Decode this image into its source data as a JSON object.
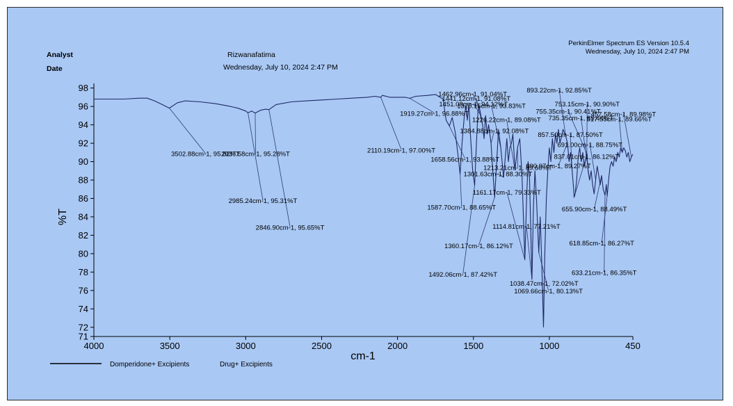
{
  "header": {
    "analyst_label": "Analyst",
    "date_label": "Date",
    "analyst_name": "Rizwanafatima",
    "analyst_date": "Wednesday, July 10, 2024 2:47 PM",
    "software": "PerkinElmer Spectrum ES Version 10.5.4",
    "software_date": "Wednesday, July 10, 2024 2:47 PM"
  },
  "colors": {
    "background": "#a9c8f4",
    "trace": "#1f2a66",
    "leader": "#2d3a74"
  },
  "chart_data": {
    "type": "line",
    "title": "",
    "xlabel": "cm-1",
    "ylabel": "%T",
    "xlim": [
      4000,
      450
    ],
    "x_reversed": true,
    "ylim": [
      71,
      98.5
    ],
    "x_ticks": [
      4000,
      3500,
      3000,
      2500,
      2000,
      1500,
      1000,
      450
    ],
    "y_ticks": [
      71,
      72,
      74,
      76,
      78,
      80,
      82,
      84,
      86,
      88,
      90,
      92,
      94,
      96,
      98
    ],
    "grid": false,
    "legend_position": "bottom-left",
    "legend": [
      "Domperidone+ Excipients",
      "Drug+ Excipients"
    ],
    "series": [
      {
        "name": "Domperidone+ Excipients",
        "points": [
          [
            4000,
            96.8
          ],
          [
            3900,
            96.8
          ],
          [
            3800,
            96.8
          ],
          [
            3700,
            96.9
          ],
          [
            3650,
            96.9
          ],
          [
            3600,
            96.6
          ],
          [
            3550,
            96.2
          ],
          [
            3502.88,
            95.82
          ],
          [
            3450,
            96.4
          ],
          [
            3400,
            96.6
          ],
          [
            3300,
            96.5
          ],
          [
            3200,
            96.3
          ],
          [
            3100,
            96.0
          ],
          [
            3050,
            95.8
          ],
          [
            3000,
            95.5
          ],
          [
            2985.24,
            95.31
          ],
          [
            2960,
            95.5
          ],
          [
            2937.58,
            95.28
          ],
          [
            2900,
            95.6
          ],
          [
            2870,
            95.7
          ],
          [
            2846.9,
            95.65
          ],
          [
            2800,
            96.2
          ],
          [
            2700,
            96.5
          ],
          [
            2600,
            96.6
          ],
          [
            2500,
            96.7
          ],
          [
            2400,
            96.8
          ],
          [
            2300,
            96.9
          ],
          [
            2200,
            97.0
          ],
          [
            2150,
            97.1
          ],
          [
            2110.19,
            97.0
          ],
          [
            2100,
            97.2
          ],
          [
            2050,
            97.0
          ],
          [
            2000,
            97.0
          ],
          [
            1950,
            97.0
          ],
          [
            1919.27,
            96.88
          ],
          [
            1880,
            97.1
          ],
          [
            1800,
            97.2
          ],
          [
            1750,
            97.3
          ],
          [
            1700,
            96.8
          ],
          [
            1680,
            94.5
          ],
          [
            1658.56,
            93.88
          ],
          [
            1640,
            94.8
          ],
          [
            1620,
            93.2
          ],
          [
            1600,
            90.5
          ],
          [
            1587.7,
            88.65
          ],
          [
            1575,
            92.0
          ],
          [
            1560,
            95.0
          ],
          [
            1550,
            96.0
          ],
          [
            1540,
            94.5
          ],
          [
            1530,
            96.2
          ],
          [
            1520,
            93.0
          ],
          [
            1505,
            89.0
          ],
          [
            1492.06,
            87.42
          ],
          [
            1480,
            92.0
          ],
          [
            1470,
            95.5
          ],
          [
            1462,
            96.0
          ],
          [
            1451,
            95.0
          ],
          [
            1440,
            94.0
          ],
          [
            1430,
            92.5
          ],
          [
            1420,
            95.0
          ],
          [
            1410,
            93.0
          ],
          [
            1400,
            94.0
          ],
          [
            1384,
            92.0
          ],
          [
            1375,
            89.5
          ],
          [
            1360.17,
            86.12
          ],
          [
            1345,
            90.5
          ],
          [
            1335,
            93.5
          ],
          [
            1320,
            91.5
          ],
          [
            1301.63,
            88.3
          ],
          [
            1290,
            90.5
          ],
          [
            1280,
            92.5
          ],
          [
            1270,
            90.0
          ],
          [
            1260,
            91.5
          ],
          [
            1250,
            92.0
          ],
          [
            1240,
            93.0
          ],
          [
            1226.22,
            89.08
          ],
          [
            1210,
            91.5
          ],
          [
            1195,
            92.5
          ],
          [
            1180,
            88.5
          ],
          [
            1161.17,
            79.33
          ],
          [
            1150,
            86.0
          ],
          [
            1140,
            90.0
          ],
          [
            1130,
            88.0
          ],
          [
            1114.81,
            77.21
          ],
          [
            1105,
            85.0
          ],
          [
            1095,
            89.0
          ],
          [
            1085,
            86.0
          ],
          [
            1069.66,
            80.13
          ],
          [
            1060,
            84.0
          ],
          [
            1050,
            79.0
          ],
          [
            1038.47,
            72.02
          ],
          [
            1030,
            80.0
          ],
          [
            1020,
            86.0
          ],
          [
            1010,
            89.0
          ],
          [
            1000,
            91.5
          ],
          [
            990,
            90.0
          ],
          [
            980,
            92.5
          ],
          [
            970,
            91.0
          ],
          [
            960,
            93.0
          ],
          [
            950,
            92.0
          ],
          [
            940,
            93.5
          ],
          [
            930,
            92.0
          ],
          [
            910,
            93.5
          ],
          [
            893.22,
            92.85
          ],
          [
            880,
            92.0
          ],
          [
            870,
            90.0
          ],
          [
            860,
            91.0
          ],
          [
            850,
            89.0
          ],
          [
            840,
            87.0
          ],
          [
            837.01,
            86.12
          ],
          [
            830,
            86.5
          ],
          [
            820,
            88.0
          ],
          [
            810,
            90.5
          ],
          [
            800,
            91.5
          ],
          [
            790,
            90.0
          ],
          [
            780,
            91.0
          ],
          [
            770,
            89.5
          ],
          [
            753.15,
            90.9
          ],
          [
            745,
            89.0
          ],
          [
            735,
            88.0
          ],
          [
            725,
            89.0
          ],
          [
            715,
            87.5
          ],
          [
            705,
            86.5
          ],
          [
            695,
            88.0
          ],
          [
            685,
            89.5
          ],
          [
            675,
            88.5
          ],
          [
            665,
            87.5
          ],
          [
            655.9,
            88.49
          ],
          [
            645,
            87.0
          ],
          [
            633.21,
            86.35
          ],
          [
            625,
            87.5
          ],
          [
            618.85,
            86.27
          ],
          [
            610,
            88.0
          ],
          [
            600,
            89.5
          ],
          [
            590,
            90.0
          ],
          [
            580,
            89.5
          ],
          [
            570,
            90.5
          ],
          [
            560,
            90.0
          ],
          [
            550,
            91.0
          ],
          [
            540,
            90.5
          ],
          [
            530,
            91.5
          ],
          [
            520,
            91.0
          ],
          [
            510,
            91.5
          ],
          [
            500,
            91.2
          ],
          [
            490,
            90.5
          ],
          [
            480,
            91.0
          ],
          [
            470,
            90.0
          ],
          [
            460,
            90.5
          ],
          [
            450,
            90.8
          ]
        ]
      }
    ],
    "annotations": [
      {
        "text": "3502.88cm-1, 95.82%T",
        "x": 3502.88,
        "y": 95.82,
        "lx": 3265,
        "ly": 90.6
      },
      {
        "text": "2937.58cm-1, 95.28%T",
        "x": 2937.58,
        "y": 95.28,
        "lx": 2935,
        "ly": 90.6
      },
      {
        "text": "2985.24cm-1, 95.31%T",
        "x": 2985.24,
        "y": 95.31,
        "lx": 2887,
        "ly": 85.5
      },
      {
        "text": "2846.90cm-1, 95.65%T",
        "x": 2846.9,
        "y": 95.65,
        "lx": 2708,
        "ly": 82.6
      },
      {
        "text": "2110.19cm-1, 97.00%T",
        "x": 2110.19,
        "y": 97.0,
        "lx": 1975,
        "ly": 91.0
      },
      {
        "text": "1919.27cm-1, 96.88%T",
        "x": 1919.27,
        "y": 96.88,
        "lx": 1758,
        "ly": 95.0
      },
      {
        "text": "1658.56cm-1, 93.88%T",
        "x": 1658.56,
        "y": 93.88,
        "lx": 1555,
        "ly": 90.0
      },
      {
        "text": "1587.70cm-1, 88.65%T",
        "x": 1587.7,
        "y": 88.65,
        "lx": 1578,
        "ly": 84.8
      },
      {
        "text": "1360.17cm-1, 86.12%T",
        "x": 1360.17,
        "y": 86.12,
        "lx": 1465,
        "ly": 80.6
      },
      {
        "text": "1492.06cm-1, 87.42%T",
        "x": 1492.06,
        "y": 87.42,
        "lx": 1569,
        "ly": 77.5
      },
      {
        "text": "1462.96cm-1, 91.04%T",
        "x": 1462,
        "y": 96.0,
        "lx": 1505,
        "ly": 97.1
      },
      {
        "text": "1451.08cm-1, 94.12%T",
        "x": 1451,
        "y": 95.0,
        "lx": 1500,
        "ly": 96.0
      },
      {
        "text": "1441.12cm-1, 91.08%T",
        "x": 1440,
        "y": 94.0,
        "lx": 1482,
        "ly": 96.6
      },
      {
        "text": "1326.15cm-1, 93.83%T",
        "x": 1320,
        "y": 91.5,
        "lx": 1382,
        "ly": 95.8
      },
      {
        "text": "1384.88cm-1, 92.08%T",
        "x": 1384,
        "y": 92.0,
        "lx": 1362,
        "ly": 93.1
      },
      {
        "text": "1226.22cm-1, 89.08%T",
        "x": 1226.22,
        "y": 89.08,
        "lx": 1282,
        "ly": 94.3
      },
      {
        "text": "1301.63cm-1, 88.30%T",
        "x": 1301.63,
        "y": 88.3,
        "lx": 1339,
        "ly": 88.4
      },
      {
        "text": "1213.21cm-1, 89.60%T",
        "x": 1210,
        "y": 91.5,
        "lx": 1208,
        "ly": 89.1
      },
      {
        "text": "1161.17cm-1, 79.33%T",
        "x": 1161.17,
        "y": 79.33,
        "lx": 1280,
        "ly": 86.4
      },
      {
        "text": "1114.81cm-1, 77.21%T",
        "x": 1114.81,
        "y": 77.21,
        "lx": 1151,
        "ly": 82.7
      },
      {
        "text": "1038.47cm-1, 72.02%T",
        "x": 1038.47,
        "y": 72.02,
        "lx": 1035,
        "ly": 76.5
      },
      {
        "text": "1069.66cm-1, 80.13%T",
        "x": 1069.66,
        "y": 80.13,
        "lx": 1006,
        "ly": 75.7
      },
      {
        "text": "893.22cm-1, 92.85%T",
        "x": 893.22,
        "y": 92.85,
        "lx": 935,
        "ly": 97.5
      },
      {
        "text": "753.15cm-1, 90.90%T",
        "x": 753.15,
        "y": 90.9,
        "lx": 751,
        "ly": 96.0
      },
      {
        "text": "755.35cm-1, 90.41%T",
        "x": 753.15,
        "y": 90.9,
        "lx": 876,
        "ly": 95.2
      },
      {
        "text": "735.35cm-1, 89.44%T",
        "x": 735,
        "y": 88.0,
        "lx": 792,
        "ly": 94.5
      },
      {
        "text": "457.58cm-1, 89.98%T",
        "x": 460,
        "y": 90.5,
        "lx": 512,
        "ly": 94.9
      },
      {
        "text": "517.55cm-1, 89.66%T",
        "x": 520,
        "y": 91.0,
        "lx": 540,
        "ly": 94.4
      },
      {
        "text": "857.50cm-1, 87.50%T",
        "x": 850,
        "y": 89.0,
        "lx": 862,
        "ly": 92.7
      },
      {
        "text": "691.00cm-1, 88.75%T",
        "x": 695,
        "y": 88.0,
        "lx": 733,
        "ly": 91.6
      },
      {
        "text": "837.01cm-1, 86.12%T",
        "x": 837.01,
        "y": 86.12,
        "lx": 755,
        "ly": 90.3
      },
      {
        "text": "890.97cm-1, 89.27%T",
        "x": 880,
        "y": 92.0,
        "lx": 940,
        "ly": 89.3
      },
      {
        "text": "655.90cm-1, 88.49%T",
        "x": 655.9,
        "y": 88.49,
        "lx": 704,
        "ly": 84.6
      },
      {
        "text": "618.85cm-1, 86.27%T",
        "x": 618.85,
        "y": 86.27,
        "lx": 655,
        "ly": 80.9
      },
      {
        "text": "633.21cm-1, 86.35%T",
        "x": 633.21,
        "y": 86.35,
        "lx": 639,
        "ly": 77.7
      }
    ]
  }
}
